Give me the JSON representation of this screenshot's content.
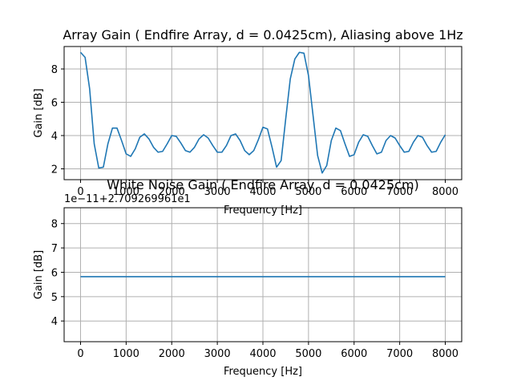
{
  "chart_data": [
    {
      "type": "line",
      "title": "Array Gain ( Endfire Array, d = 0.0425cm), Aliasing above 1Hz",
      "xlabel": "Frequency [Hz]",
      "ylabel": "Gain [dB]",
      "xlim": [
        -360,
        8360
      ],
      "ylim": [
        1.35,
        9.35
      ],
      "xticks": [
        0,
        1000,
        2000,
        3000,
        4000,
        5000,
        6000,
        7000,
        8000
      ],
      "xtick_labels": [
        "0",
        "1000",
        "2000",
        "3000",
        "4000",
        "5000",
        "6000",
        "7000",
        "8000"
      ],
      "yticks": [
        2,
        4,
        6,
        8
      ],
      "ytick_labels": [
        "2",
        "4",
        "6",
        "8"
      ],
      "grid": true,
      "line_color": "#1f77b4",
      "x": [
        0,
        100,
        200,
        300,
        400,
        500,
        600,
        700,
        800,
        900,
        1000,
        1100,
        1200,
        1300,
        1400,
        1500,
        1600,
        1700,
        1800,
        1900,
        2000,
        2100,
        2200,
        2300,
        2400,
        2500,
        2600,
        2700,
        2800,
        2900,
        3000,
        3100,
        3200,
        3300,
        3400,
        3500,
        3600,
        3700,
        3800,
        3900,
        4000,
        4100,
        4200,
        4300,
        4400,
        4500,
        4600,
        4700,
        4800,
        4900,
        5000,
        5100,
        5200,
        5300,
        5400,
        5500,
        5600,
        5700,
        5800,
        5900,
        6000,
        6100,
        6200,
        6300,
        6400,
        6500,
        6600,
        6700,
        6800,
        6900,
        7000,
        7100,
        7200,
        7300,
        7400,
        7500,
        7600,
        7700,
        7800,
        7900,
        8000
      ],
      "y": [
        9.0,
        8.7,
        6.8,
        3.5,
        2.05,
        2.1,
        3.5,
        4.45,
        4.45,
        3.7,
        2.9,
        2.75,
        3.2,
        3.9,
        4.1,
        3.8,
        3.3,
        3.0,
        3.05,
        3.5,
        4.0,
        3.95,
        3.55,
        3.1,
        3.0,
        3.3,
        3.8,
        4.05,
        3.85,
        3.4,
        3.0,
        3.0,
        3.4,
        4.0,
        4.1,
        3.7,
        3.1,
        2.85,
        3.1,
        3.75,
        4.5,
        4.4,
        3.3,
        2.1,
        2.5,
        5.0,
        7.4,
        8.6,
        9.0,
        8.95,
        7.6,
        5.2,
        2.8,
        1.75,
        2.2,
        3.7,
        4.45,
        4.3,
        3.5,
        2.75,
        2.85,
        3.6,
        4.05,
        3.95,
        3.4,
        2.9,
        3.0,
        3.7,
        4.0,
        3.85,
        3.4,
        3.0,
        3.05,
        3.6,
        4.0,
        3.9,
        3.4,
        3.0,
        3.05,
        3.6,
        4.05
      ],
      "note_x_shift": 0
    },
    {
      "type": "line",
      "title": "White Noise Gain ( Endfire Array, d = 0.0425cm)",
      "xlabel": "Frequency [Hz]",
      "ylabel": "Gain [dB]",
      "offset_text": "1e−11+2.709269961e1",
      "xlim": [
        -360,
        8360
      ],
      "ylim": [
        3.15,
        8.65
      ],
      "xticks": [
        0,
        1000,
        2000,
        3000,
        4000,
        5000,
        6000,
        7000,
        8000
      ],
      "xtick_labels": [
        "0",
        "1000",
        "2000",
        "3000",
        "4000",
        "5000",
        "6000",
        "7000",
        "8000"
      ],
      "yticks": [
        4,
        5,
        6,
        7,
        8
      ],
      "ytick_labels": [
        "4",
        "5",
        "6",
        "7",
        "8"
      ],
      "grid": true,
      "line_color": "#1f77b4",
      "x": [
        0,
        8000
      ],
      "y": [
        5.82,
        5.82
      ]
    }
  ]
}
